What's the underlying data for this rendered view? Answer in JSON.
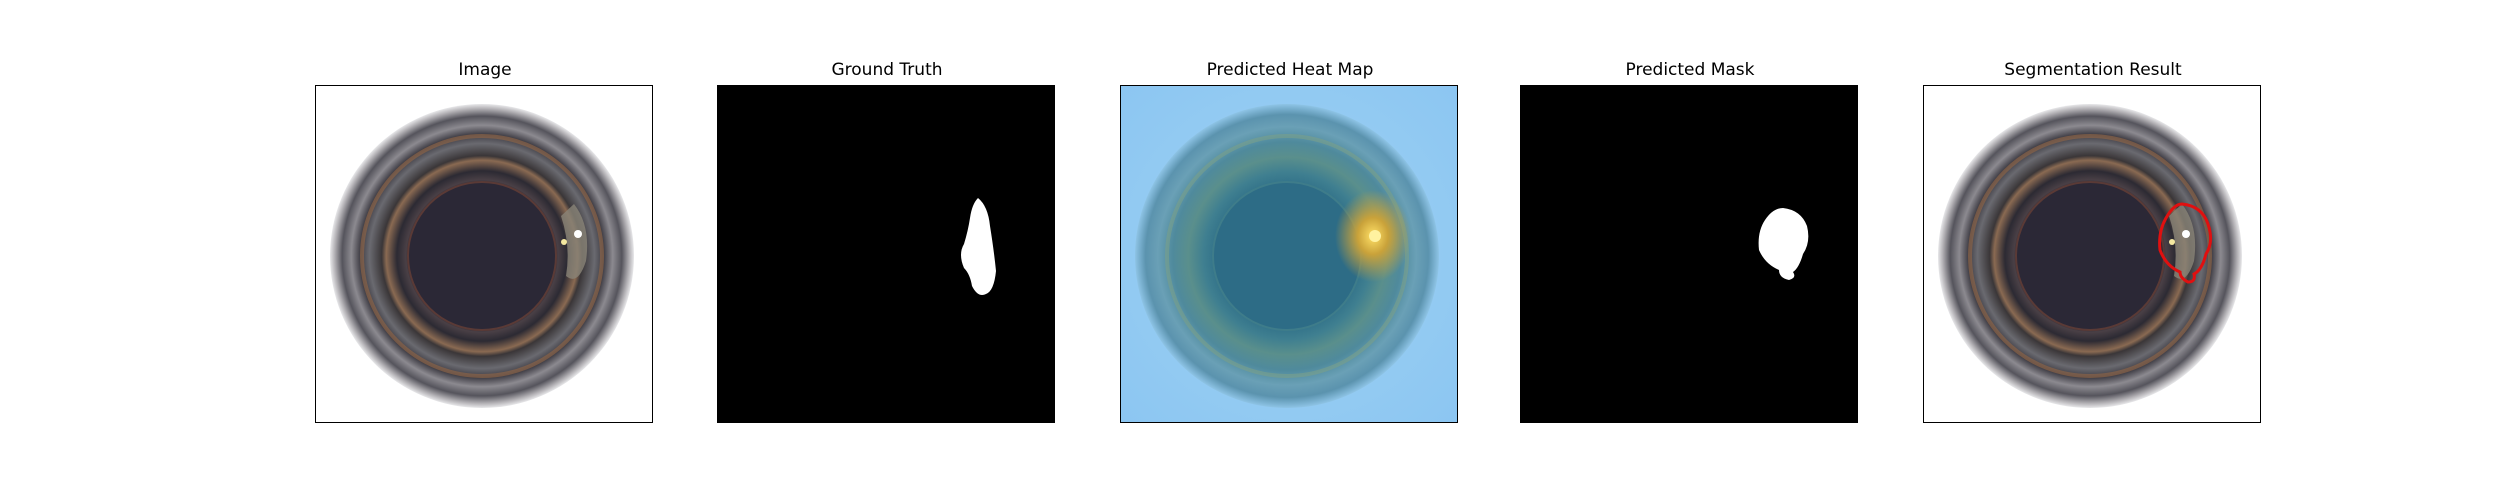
{
  "panels": [
    {
      "title": "Image",
      "icon": "bottle-image-icon"
    },
    {
      "title": "Ground Truth",
      "icon": "ground-truth-mask-icon"
    },
    {
      "title": "Predicted Heat Map",
      "icon": "heat-map-icon"
    },
    {
      "title": "Predicted Mask",
      "icon": "predicted-mask-icon"
    },
    {
      "title": "Segmentation Result",
      "icon": "segmentation-result-icon"
    }
  ],
  "colors": {
    "frame": "#000000",
    "mask_background": "#000000",
    "mask_foreground": "#ffffff",
    "segmentation_outline": "#e01010"
  }
}
